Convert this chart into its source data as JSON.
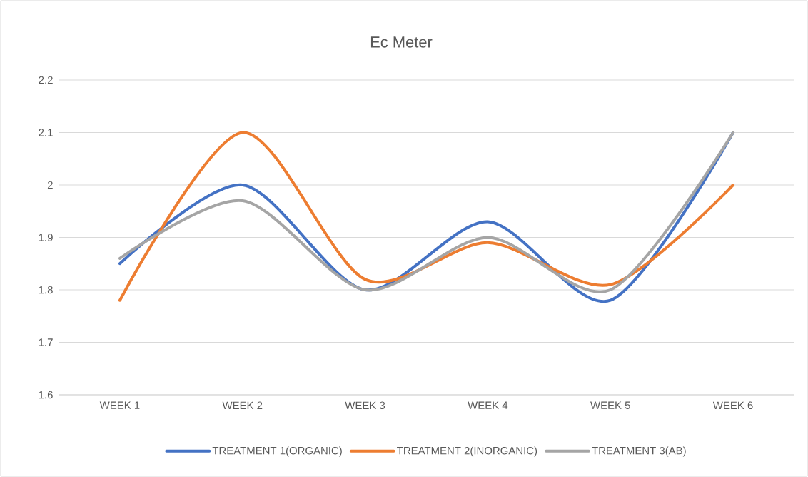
{
  "chart_data": {
    "type": "line",
    "title": "Ec Meter",
    "categories": [
      "WEEK 1",
      "WEEK 2",
      "WEEK 3",
      "WEEK 4",
      "WEEK 5",
      "WEEK 6"
    ],
    "series": [
      {
        "name": "TREATMENT 1(ORGANIC)",
        "color": "#4472c4",
        "values": [
          1.85,
          2.0,
          1.8,
          1.93,
          1.78,
          2.1
        ]
      },
      {
        "name": "TREATMENT 2(INORGANIC)",
        "color": "#ed7d31",
        "values": [
          1.78,
          2.1,
          1.82,
          1.89,
          1.81,
          2.0
        ]
      },
      {
        "name": "TREATMENT 3(AB)",
        "color": "#a5a5a5",
        "values": [
          1.86,
          1.97,
          1.8,
          1.9,
          1.8,
          2.1
        ]
      }
    ],
    "ylim": [
      1.6,
      2.2
    ],
    "yticks": [
      1.6,
      1.7,
      1.8,
      1.9,
      2,
      2.1,
      2.2
    ],
    "grid": "y",
    "legend": "bottom",
    "marker": "none",
    "line_style": "solid"
  }
}
